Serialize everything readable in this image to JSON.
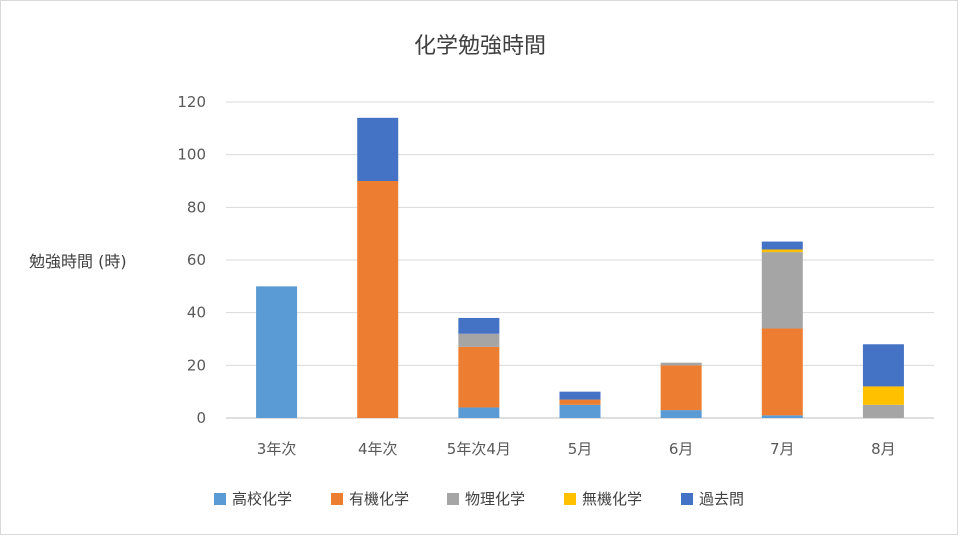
{
  "chart_data": {
    "type": "bar",
    "stacked": true,
    "title": "化学勉強時間",
    "xlabel": "",
    "ylabel": "勉強時間 (時)",
    "ylim": [
      0,
      120
    ],
    "yticks": [
      0,
      20,
      40,
      60,
      80,
      100,
      120
    ],
    "grid": true,
    "legend_position": "bottom",
    "categories": [
      "3年次",
      "4年次",
      "5年次4月",
      "5月",
      "6月",
      "7月",
      "8月"
    ],
    "series": [
      {
        "name": "高校化学",
        "color": "#5b9bd5",
        "values": [
          50,
          0,
          4,
          5,
          3,
          1,
          0
        ]
      },
      {
        "name": "有機化学",
        "color": "#ed7d31",
        "values": [
          0,
          90,
          23,
          2,
          17,
          33,
          0
        ]
      },
      {
        "name": "物理化学",
        "color": "#a5a5a5",
        "values": [
          0,
          0,
          5,
          0,
          1,
          29,
          5
        ]
      },
      {
        "name": "無機化学",
        "color": "#ffc000",
        "values": [
          0,
          0,
          0,
          0,
          0,
          1,
          7
        ]
      },
      {
        "name": "過去問",
        "color": "#4472c4",
        "values": [
          0,
          24,
          6,
          3,
          0,
          3,
          16
        ]
      }
    ]
  }
}
